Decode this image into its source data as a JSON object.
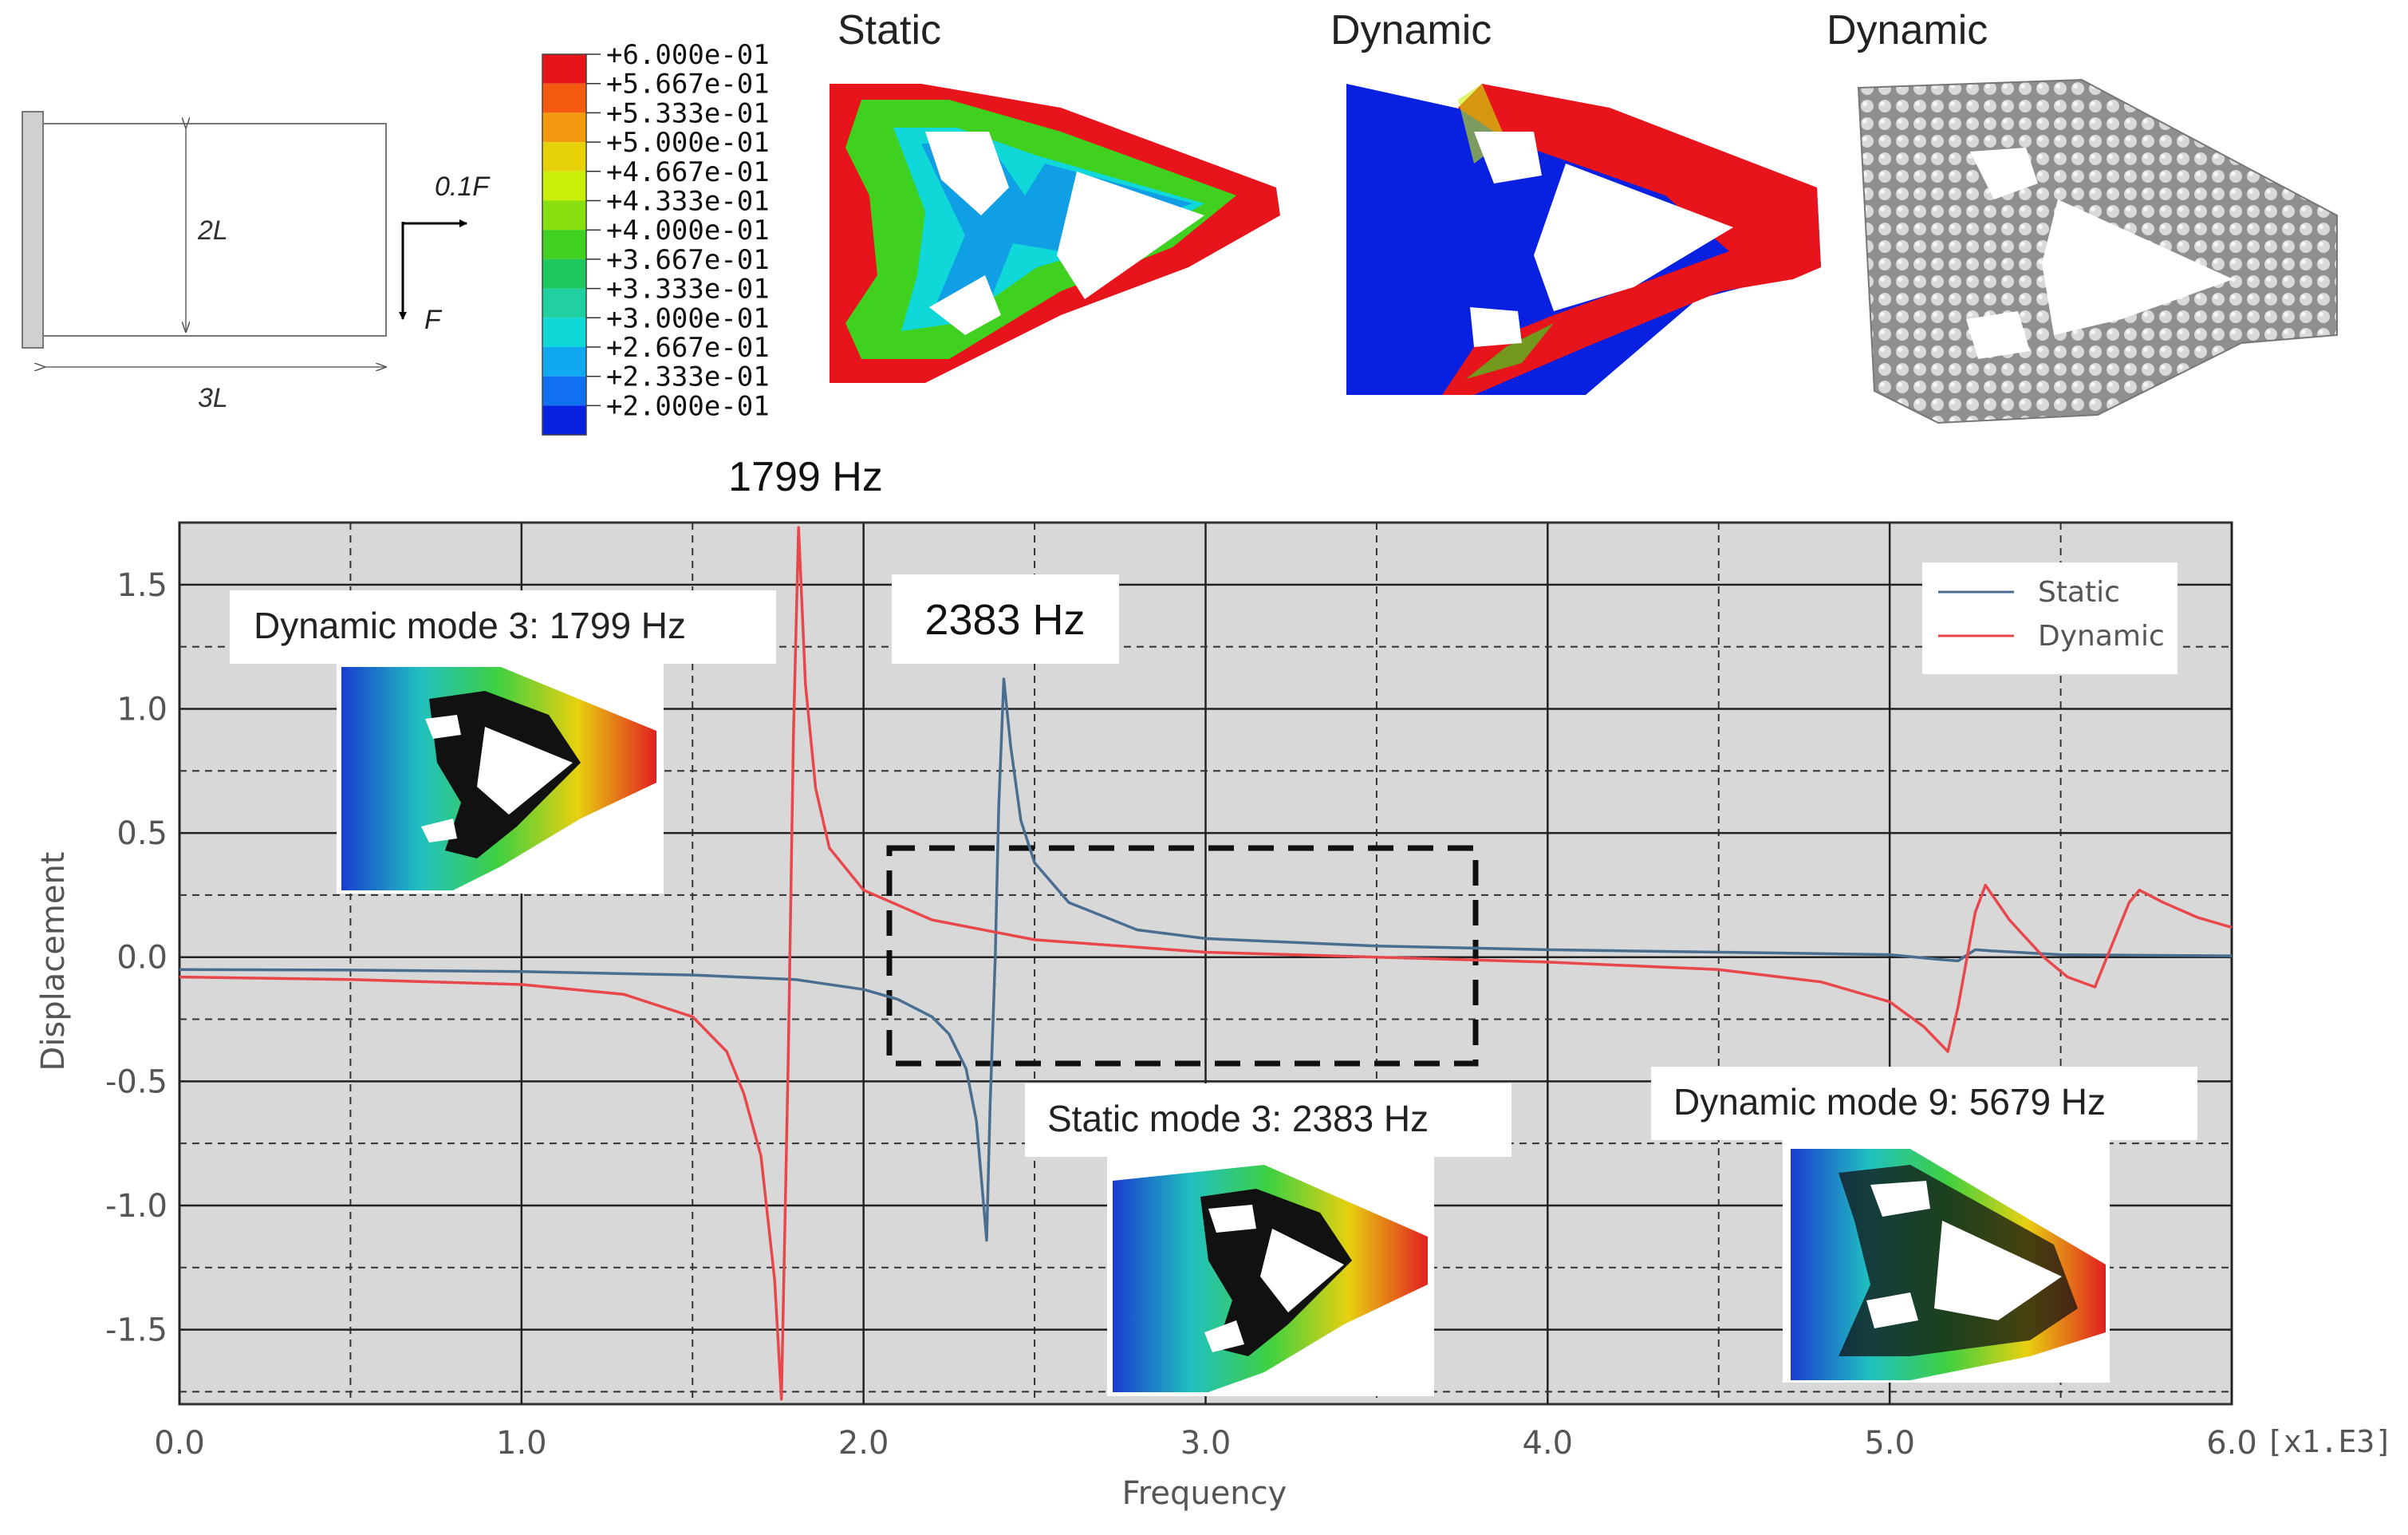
{
  "top_panels": {
    "schematic": {
      "height_label": "2L",
      "width_label": "3L",
      "force_x_label": "0.1F",
      "force_y_label": "F"
    },
    "legend_scale": {
      "labels": [
        "+6.000e-01",
        "+5.667e-01",
        "+5.333e-01",
        "+5.000e-01",
        "+4.667e-01",
        "+4.333e-01",
        "+4.000e-01",
        "+3.667e-01",
        "+3.333e-01",
        "+3.000e-01",
        "+2.667e-01",
        "+2.333e-01",
        "+2.000e-01"
      ],
      "colors": [
        "#e8141b",
        "#f45a10",
        "#f49a10",
        "#e7d108",
        "#c8ee0a",
        "#88e010",
        "#40d020",
        "#20c860",
        "#20d0a0",
        "#10d8d8",
        "#10a8f0",
        "#1070f0",
        "#0820e0"
      ]
    },
    "titles": {
      "static": "Static",
      "dynamic1": "Dynamic",
      "dynamic2": "Dynamic"
    }
  },
  "annotations": {
    "peak_dynamic": "1799 Hz",
    "peak_static": "2383 Hz",
    "inset_dynamic3": "Dynamic mode 3: 1799 Hz",
    "inset_static3": "Static mode 3: 2383 Hz",
    "inset_dynamic9": "Dynamic mode 9: 5679 Hz"
  },
  "chart_data": {
    "type": "line",
    "xlabel": "Frequency",
    "ylabel": "Displacement",
    "x_unit_label": "[x1.E3]",
    "xlim": [
      0,
      6.0
    ],
    "ylim": [
      -1.8,
      1.75
    ],
    "x_ticks": [
      "0.0",
      "1.0",
      "2.0",
      "3.0",
      "4.0",
      "5.0",
      "6.0"
    ],
    "y_ticks": [
      "1.5",
      "1.0",
      "0.5",
      "0.0",
      "-0.5",
      "-1.0",
      "-1.5"
    ],
    "grid": true,
    "legend_position": "top-right",
    "series": [
      {
        "name": "Static",
        "color": "#4a6e90",
        "points": [
          [
            0.0,
            -0.05
          ],
          [
            0.5,
            -0.052
          ],
          [
            1.0,
            -0.058
          ],
          [
            1.5,
            -0.072
          ],
          [
            1.8,
            -0.09
          ],
          [
            2.0,
            -0.13
          ],
          [
            2.1,
            -0.17
          ],
          [
            2.2,
            -0.24
          ],
          [
            2.25,
            -0.31
          ],
          [
            2.3,
            -0.45
          ],
          [
            2.33,
            -0.66
          ],
          [
            2.36,
            -1.14
          ],
          [
            2.37,
            -0.6
          ],
          [
            2.385,
            0.0
          ],
          [
            2.395,
            0.6
          ],
          [
            2.41,
            1.12
          ],
          [
            2.43,
            0.85
          ],
          [
            2.46,
            0.55
          ],
          [
            2.5,
            0.38
          ],
          [
            2.6,
            0.22
          ],
          [
            2.8,
            0.11
          ],
          [
            3.0,
            0.075
          ],
          [
            3.5,
            0.045
          ],
          [
            4.0,
            0.03
          ],
          [
            4.5,
            0.02
          ],
          [
            5.0,
            0.01
          ],
          [
            5.15,
            -0.01
          ],
          [
            5.2,
            -0.015
          ],
          [
            5.25,
            0.03
          ],
          [
            5.3,
            0.025
          ],
          [
            5.5,
            0.01
          ],
          [
            6.0,
            0.005
          ]
        ]
      },
      {
        "name": "Dynamic",
        "color": "#e8474b",
        "points": [
          [
            0.0,
            -0.08
          ],
          [
            0.5,
            -0.09
          ],
          [
            1.0,
            -0.11
          ],
          [
            1.3,
            -0.15
          ],
          [
            1.5,
            -0.24
          ],
          [
            1.6,
            -0.38
          ],
          [
            1.65,
            -0.55
          ],
          [
            1.7,
            -0.8
          ],
          [
            1.74,
            -1.3
          ],
          [
            1.76,
            -1.78
          ],
          [
            1.78,
            -0.4
          ],
          [
            1.795,
            0.9
          ],
          [
            1.81,
            1.73
          ],
          [
            1.83,
            1.1
          ],
          [
            1.86,
            0.68
          ],
          [
            1.9,
            0.44
          ],
          [
            2.0,
            0.27
          ],
          [
            2.2,
            0.15
          ],
          [
            2.5,
            0.07
          ],
          [
            3.0,
            0.02
          ],
          [
            3.5,
            0.0
          ],
          [
            4.0,
            -0.02
          ],
          [
            4.5,
            -0.05
          ],
          [
            4.8,
            -0.1
          ],
          [
            5.0,
            -0.18
          ],
          [
            5.1,
            -0.28
          ],
          [
            5.17,
            -0.38
          ],
          [
            5.2,
            -0.2
          ],
          [
            5.25,
            0.18
          ],
          [
            5.28,
            0.29
          ],
          [
            5.35,
            0.15
          ],
          [
            5.45,
            0.0
          ],
          [
            5.52,
            -0.08
          ],
          [
            5.6,
            -0.12
          ],
          [
            5.65,
            0.05
          ],
          [
            5.7,
            0.22
          ],
          [
            5.73,
            0.27
          ],
          [
            5.8,
            0.22
          ],
          [
            5.9,
            0.16
          ],
          [
            6.0,
            0.12
          ]
        ]
      }
    ]
  }
}
